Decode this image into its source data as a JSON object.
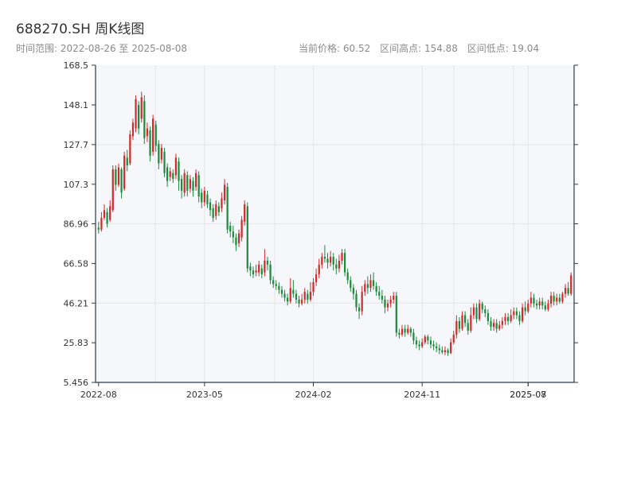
{
  "header": {
    "title": "688270.SH 周K线图",
    "range_label": "时间范围: 2022-08-26 至 2025-08-08",
    "current_price_label": "当前价格: 60.52",
    "range_high_label": "区间高点: 154.88",
    "range_low_label": "区间低点: 19.04"
  },
  "colors": {
    "up": "#d42a2a",
    "down": "#1e8a3c",
    "plot_bg": "#f5f7fa",
    "grid": "#e3e6ea",
    "axis": "#2b3a4a"
  },
  "chart_data": {
    "type": "candlestick",
    "title": "688270.SH 周K线图",
    "grid": true,
    "y_ticks": [
      "5.456",
      "25.83",
      "46.21",
      "66.58",
      "86.96",
      "107.3",
      "127.7",
      "148.1",
      "168.5"
    ],
    "ylim": [
      5.456,
      168.5
    ],
    "x_ticks": [
      {
        "week": 0,
        "label": "2022-08"
      },
      {
        "week": 37,
        "label": "2023-05"
      },
      {
        "week": 75,
        "label": "2024-02"
      },
      {
        "week": 113,
        "label": "2024-11"
      },
      {
        "week": 150,
        "label": "2025-07"
      },
      {
        "week": 150,
        "label": "2025-08"
      }
    ],
    "date_range": [
      "2022-08-26",
      "2025-08-08"
    ],
    "current_price": 60.52,
    "range_high": 154.88,
    "range_low": 19.04,
    "candles": [
      [
        85.0,
        84.0,
        88.0,
        82.0
      ],
      [
        84.0,
        90.0,
        93.0,
        83.0
      ],
      [
        90.0,
        94.0,
        97.0,
        89.0
      ],
      [
        93.0,
        87.0,
        95.0,
        85.0
      ],
      [
        89.0,
        96.0,
        99.0,
        88.0
      ],
      [
        94.0,
        115.0,
        117.0,
        93.0
      ],
      [
        115.0,
        107.0,
        117.0,
        104.0
      ],
      [
        107.0,
        116.0,
        118.0,
        106.0
      ],
      [
        115.0,
        103.0,
        116.0,
        100.0
      ],
      [
        105.0,
        122.0,
        124.0,
        104.0
      ],
      [
        121.0,
        117.0,
        125.0,
        114.0
      ],
      [
        118.0,
        133.0,
        135.0,
        117.0
      ],
      [
        132.0,
        139.0,
        141.0,
        130.0
      ],
      [
        136.0,
        151.0,
        153.0,
        134.0
      ],
      [
        148.0,
        136.0,
        150.0,
        133.0
      ],
      [
        141.0,
        152.0,
        154.88,
        139.0
      ],
      [
        150.0,
        131.0,
        153.0,
        128.0
      ],
      [
        132.0,
        136.0,
        139.0,
        129.0
      ],
      [
        135.0,
        122.0,
        137.0,
        119.0
      ],
      [
        124.0,
        141.0,
        143.0,
        122.0
      ],
      [
        138.0,
        127.0,
        140.0,
        124.0
      ],
      [
        128.0,
        118.0,
        130.0,
        115.0
      ],
      [
        120.0,
        126.0,
        128.0,
        118.0
      ],
      [
        124.0,
        113.0,
        126.0,
        111.0
      ],
      [
        116.0,
        109.0,
        118.0,
        106.0
      ],
      [
        111.0,
        114.0,
        116.0,
        109.0
      ],
      [
        113.0,
        110.0,
        115.0,
        108.0
      ],
      [
        112.0,
        121.0,
        123.0,
        110.0
      ],
      [
        119.0,
        109.0,
        121.0,
        104.0
      ],
      [
        110.0,
        104.0,
        112.0,
        100.0
      ],
      [
        103.0,
        113.0,
        115.0,
        101.0
      ],
      [
        112.0,
        104.0,
        114.0,
        101.0
      ],
      [
        105.0,
        110.0,
        112.0,
        103.0
      ],
      [
        109.0,
        104.0,
        111.0,
        101.0
      ],
      [
        106.0,
        113.0,
        115.0,
        104.0
      ],
      [
        112.0,
        101.0,
        114.0,
        98.0
      ],
      [
        103.0,
        98.0,
        105.0,
        95.0
      ],
      [
        98.0,
        104.0,
        106.0,
        96.0
      ],
      [
        102.0,
        97.0,
        104.0,
        95.0
      ],
      [
        98.0,
        94.0,
        100.0,
        91.0
      ],
      [
        95.0,
        90.0,
        97.0,
        88.0
      ],
      [
        91.0,
        97.0,
        99.0,
        89.0
      ],
      [
        96.0,
        93.0,
        98.0,
        91.0
      ],
      [
        95.0,
        100.0,
        103.0,
        93.0
      ],
      [
        99.0,
        107.0,
        110.0,
        97.0
      ],
      [
        106.0,
        84.0,
        108.0,
        82.0
      ],
      [
        86.0,
        83.0,
        88.0,
        80.0
      ],
      [
        83.0,
        80.0,
        86.0,
        77.0
      ],
      [
        80.0,
        76.0,
        82.0,
        73.0
      ],
      [
        77.0,
        82.0,
        84.0,
        75.0
      ],
      [
        80.0,
        89.0,
        91.0,
        78.0
      ],
      [
        88.0,
        97.0,
        99.0,
        86.0
      ],
      [
        96.0,
        64.0,
        98.0,
        62.0
      ],
      [
        65.0,
        63.0,
        67.0,
        60.0
      ],
      [
        63.0,
        61.0,
        65.0,
        59.0
      ],
      [
        62.0,
        63.0,
        66.0,
        60.0
      ],
      [
        62.0,
        66.0,
        68.0,
        60.0
      ],
      [
        64.0,
        61.0,
        66.0,
        59.0
      ],
      [
        62.0,
        68.0,
        74.0,
        60.0
      ],
      [
        68.0,
        66.0,
        70.0,
        63.0
      ],
      [
        66.0,
        58.0,
        68.0,
        56.0
      ],
      [
        58.0,
        56.0,
        60.0,
        54.0
      ],
      [
        56.0,
        55.0,
        58.0,
        53.0
      ],
      [
        55.0,
        53.0,
        57.0,
        51.0
      ],
      [
        53.0,
        51.0,
        55.0,
        49.0
      ],
      [
        51.0,
        49.0,
        53.0,
        47.0
      ],
      [
        49.0,
        47.0,
        51.0,
        45.0
      ],
      [
        47.0,
        54.0,
        59.0,
        46.0
      ],
      [
        53.0,
        51.0,
        58.0,
        49.0
      ],
      [
        51.0,
        48.0,
        53.0,
        46.0
      ],
      [
        48.0,
        46.0,
        50.0,
        44.0
      ],
      [
        46.0,
        48.0,
        51.0,
        45.0
      ],
      [
        48.0,
        52.0,
        54.0,
        46.0
      ],
      [
        51.0,
        48.0,
        53.0,
        46.0
      ],
      [
        48.0,
        52.0,
        57.0,
        47.0
      ],
      [
        52.0,
        57.0,
        59.0,
        50.0
      ],
      [
        57.0,
        61.0,
        64.0,
        55.0
      ],
      [
        61.0,
        66.0,
        69.0,
        59.0
      ],
      [
        66.0,
        70.0,
        72.0,
        64.0
      ],
      [
        70.0,
        69.0,
        76.0,
        67.0
      ],
      [
        69.0,
        67.0,
        72.0,
        64.0
      ],
      [
        67.0,
        70.0,
        73.0,
        65.0
      ],
      [
        70.0,
        66.0,
        72.0,
        63.0
      ],
      [
        66.0,
        64.0,
        69.0,
        61.0
      ],
      [
        64.0,
        68.0,
        71.0,
        62.0
      ],
      [
        68.0,
        72.0,
        74.0,
        66.0
      ],
      [
        72.0,
        62.0,
        74.0,
        60.0
      ],
      [
        62.0,
        58.0,
        64.0,
        56.0
      ],
      [
        58.0,
        54.0,
        60.0,
        52.0
      ],
      [
        54.0,
        51.0,
        56.0,
        48.0
      ],
      [
        51.0,
        44.0,
        53.0,
        42.0
      ],
      [
        44.0,
        42.0,
        46.0,
        38.0
      ],
      [
        42.0,
        52.0,
        55.0,
        40.0
      ],
      [
        52.0,
        56.0,
        58.0,
        50.0
      ],
      [
        56.0,
        54.0,
        60.0,
        51.0
      ],
      [
        54.0,
        58.0,
        61.0,
        52.0
      ],
      [
        58.0,
        55.0,
        62.0,
        53.0
      ],
      [
        55.0,
        52.0,
        57.0,
        50.0
      ],
      [
        52.0,
        50.0,
        55.0,
        48.0
      ],
      [
        50.0,
        48.0,
        53.0,
        46.0
      ],
      [
        48.0,
        44.0,
        50.0,
        41.0
      ],
      [
        44.0,
        46.0,
        48.0,
        42.0
      ],
      [
        46.0,
        48.0,
        50.0,
        44.0
      ],
      [
        48.0,
        50.0,
        52.0,
        46.0
      ],
      [
        50.0,
        31.0,
        52.0,
        29.0
      ],
      [
        31.0,
        30.0,
        33.0,
        28.0
      ],
      [
        30.0,
        33.0,
        35.0,
        29.0
      ],
      [
        33.0,
        31.0,
        35.0,
        29.0
      ],
      [
        31.0,
        33.0,
        35.0,
        30.0
      ],
      [
        33.0,
        31.0,
        34.0,
        29.0
      ],
      [
        31.0,
        27.0,
        33.0,
        25.0
      ],
      [
        27.0,
        25.0,
        29.0,
        23.0
      ],
      [
        25.0,
        24.0,
        27.0,
        22.0
      ],
      [
        24.0,
        26.0,
        28.0,
        23.0
      ],
      [
        26.0,
        29.0,
        30.0,
        25.0
      ],
      [
        29.0,
        27.0,
        30.0,
        25.0
      ],
      [
        27.0,
        25.0,
        29.0,
        23.0
      ],
      [
        25.0,
        24.0,
        27.0,
        22.0
      ],
      [
        24.0,
        23.0,
        26.0,
        21.0
      ],
      [
        23.0,
        22.0,
        25.0,
        20.0
      ],
      [
        22.0,
        21.0,
        24.0,
        20.0
      ],
      [
        21.0,
        22.0,
        24.0,
        19.5
      ],
      [
        22.0,
        20.5,
        23.0,
        19.04
      ],
      [
        20.5,
        26.0,
        28.0,
        20.0
      ],
      [
        26.0,
        30.0,
        32.0,
        25.0
      ],
      [
        30.0,
        37.0,
        40.0,
        28.0
      ],
      [
        37.0,
        33.0,
        39.0,
        31.0
      ],
      [
        33.0,
        40.0,
        42.0,
        32.0
      ],
      [
        40.0,
        36.0,
        42.0,
        34.0
      ],
      [
        36.0,
        32.0,
        38.0,
        30.0
      ],
      [
        32.0,
        40.0,
        44.0,
        31.0
      ],
      [
        40.0,
        44.0,
        46.0,
        38.0
      ],
      [
        44.0,
        38.0,
        46.0,
        36.0
      ],
      [
        38.0,
        46.0,
        48.0,
        37.0
      ],
      [
        46.0,
        43.0,
        47.0,
        41.0
      ],
      [
        43.0,
        41.0,
        45.0,
        39.0
      ],
      [
        41.0,
        37.0,
        43.0,
        35.0
      ],
      [
        37.0,
        34.0,
        39.0,
        32.0
      ],
      [
        34.0,
        36.0,
        38.0,
        32.0
      ],
      [
        36.0,
        33.0,
        38.0,
        31.0
      ],
      [
        33.0,
        35.0,
        37.0,
        32.0
      ],
      [
        35.0,
        37.0,
        39.0,
        33.0
      ],
      [
        37.0,
        39.0,
        41.0,
        35.0
      ],
      [
        39.0,
        37.0,
        41.0,
        35.0
      ],
      [
        37.0,
        40.0,
        43.0,
        36.0
      ],
      [
        40.0,
        42.0,
        44.0,
        38.0
      ],
      [
        42.0,
        40.0,
        44.0,
        38.0
      ],
      [
        40.0,
        37.0,
        42.0,
        35.0
      ],
      [
        37.0,
        44.0,
        46.0,
        36.0
      ],
      [
        44.0,
        42.0,
        47.0,
        40.0
      ],
      [
        42.0,
        46.0,
        48.0,
        41.0
      ],
      [
        46.0,
        49.0,
        52.0,
        44.0
      ],
      [
        49.0,
        46.0,
        51.0,
        44.0
      ],
      [
        46.0,
        45.0,
        48.0,
        43.0
      ],
      [
        45.0,
        47.0,
        49.0,
        43.0
      ],
      [
        47.0,
        45.0,
        49.0,
        43.0
      ],
      [
        45.0,
        43.0,
        47.0,
        42.0
      ],
      [
        43.0,
        46.0,
        48.0,
        42.0
      ],
      [
        46.0,
        50.0,
        52.0,
        44.0
      ],
      [
        50.0,
        47.0,
        52.0,
        45.0
      ],
      [
        47.0,
        49.0,
        51.0,
        45.0
      ],
      [
        49.0,
        47.0,
        51.0,
        46.0
      ],
      [
        47.0,
        51.0,
        52.0,
        46.0
      ],
      [
        51.0,
        54.0,
        56.0,
        49.0
      ],
      [
        54.0,
        51.0,
        57.0,
        50.0
      ],
      [
        51.0,
        60.52,
        62.0,
        50.0
      ]
    ]
  }
}
